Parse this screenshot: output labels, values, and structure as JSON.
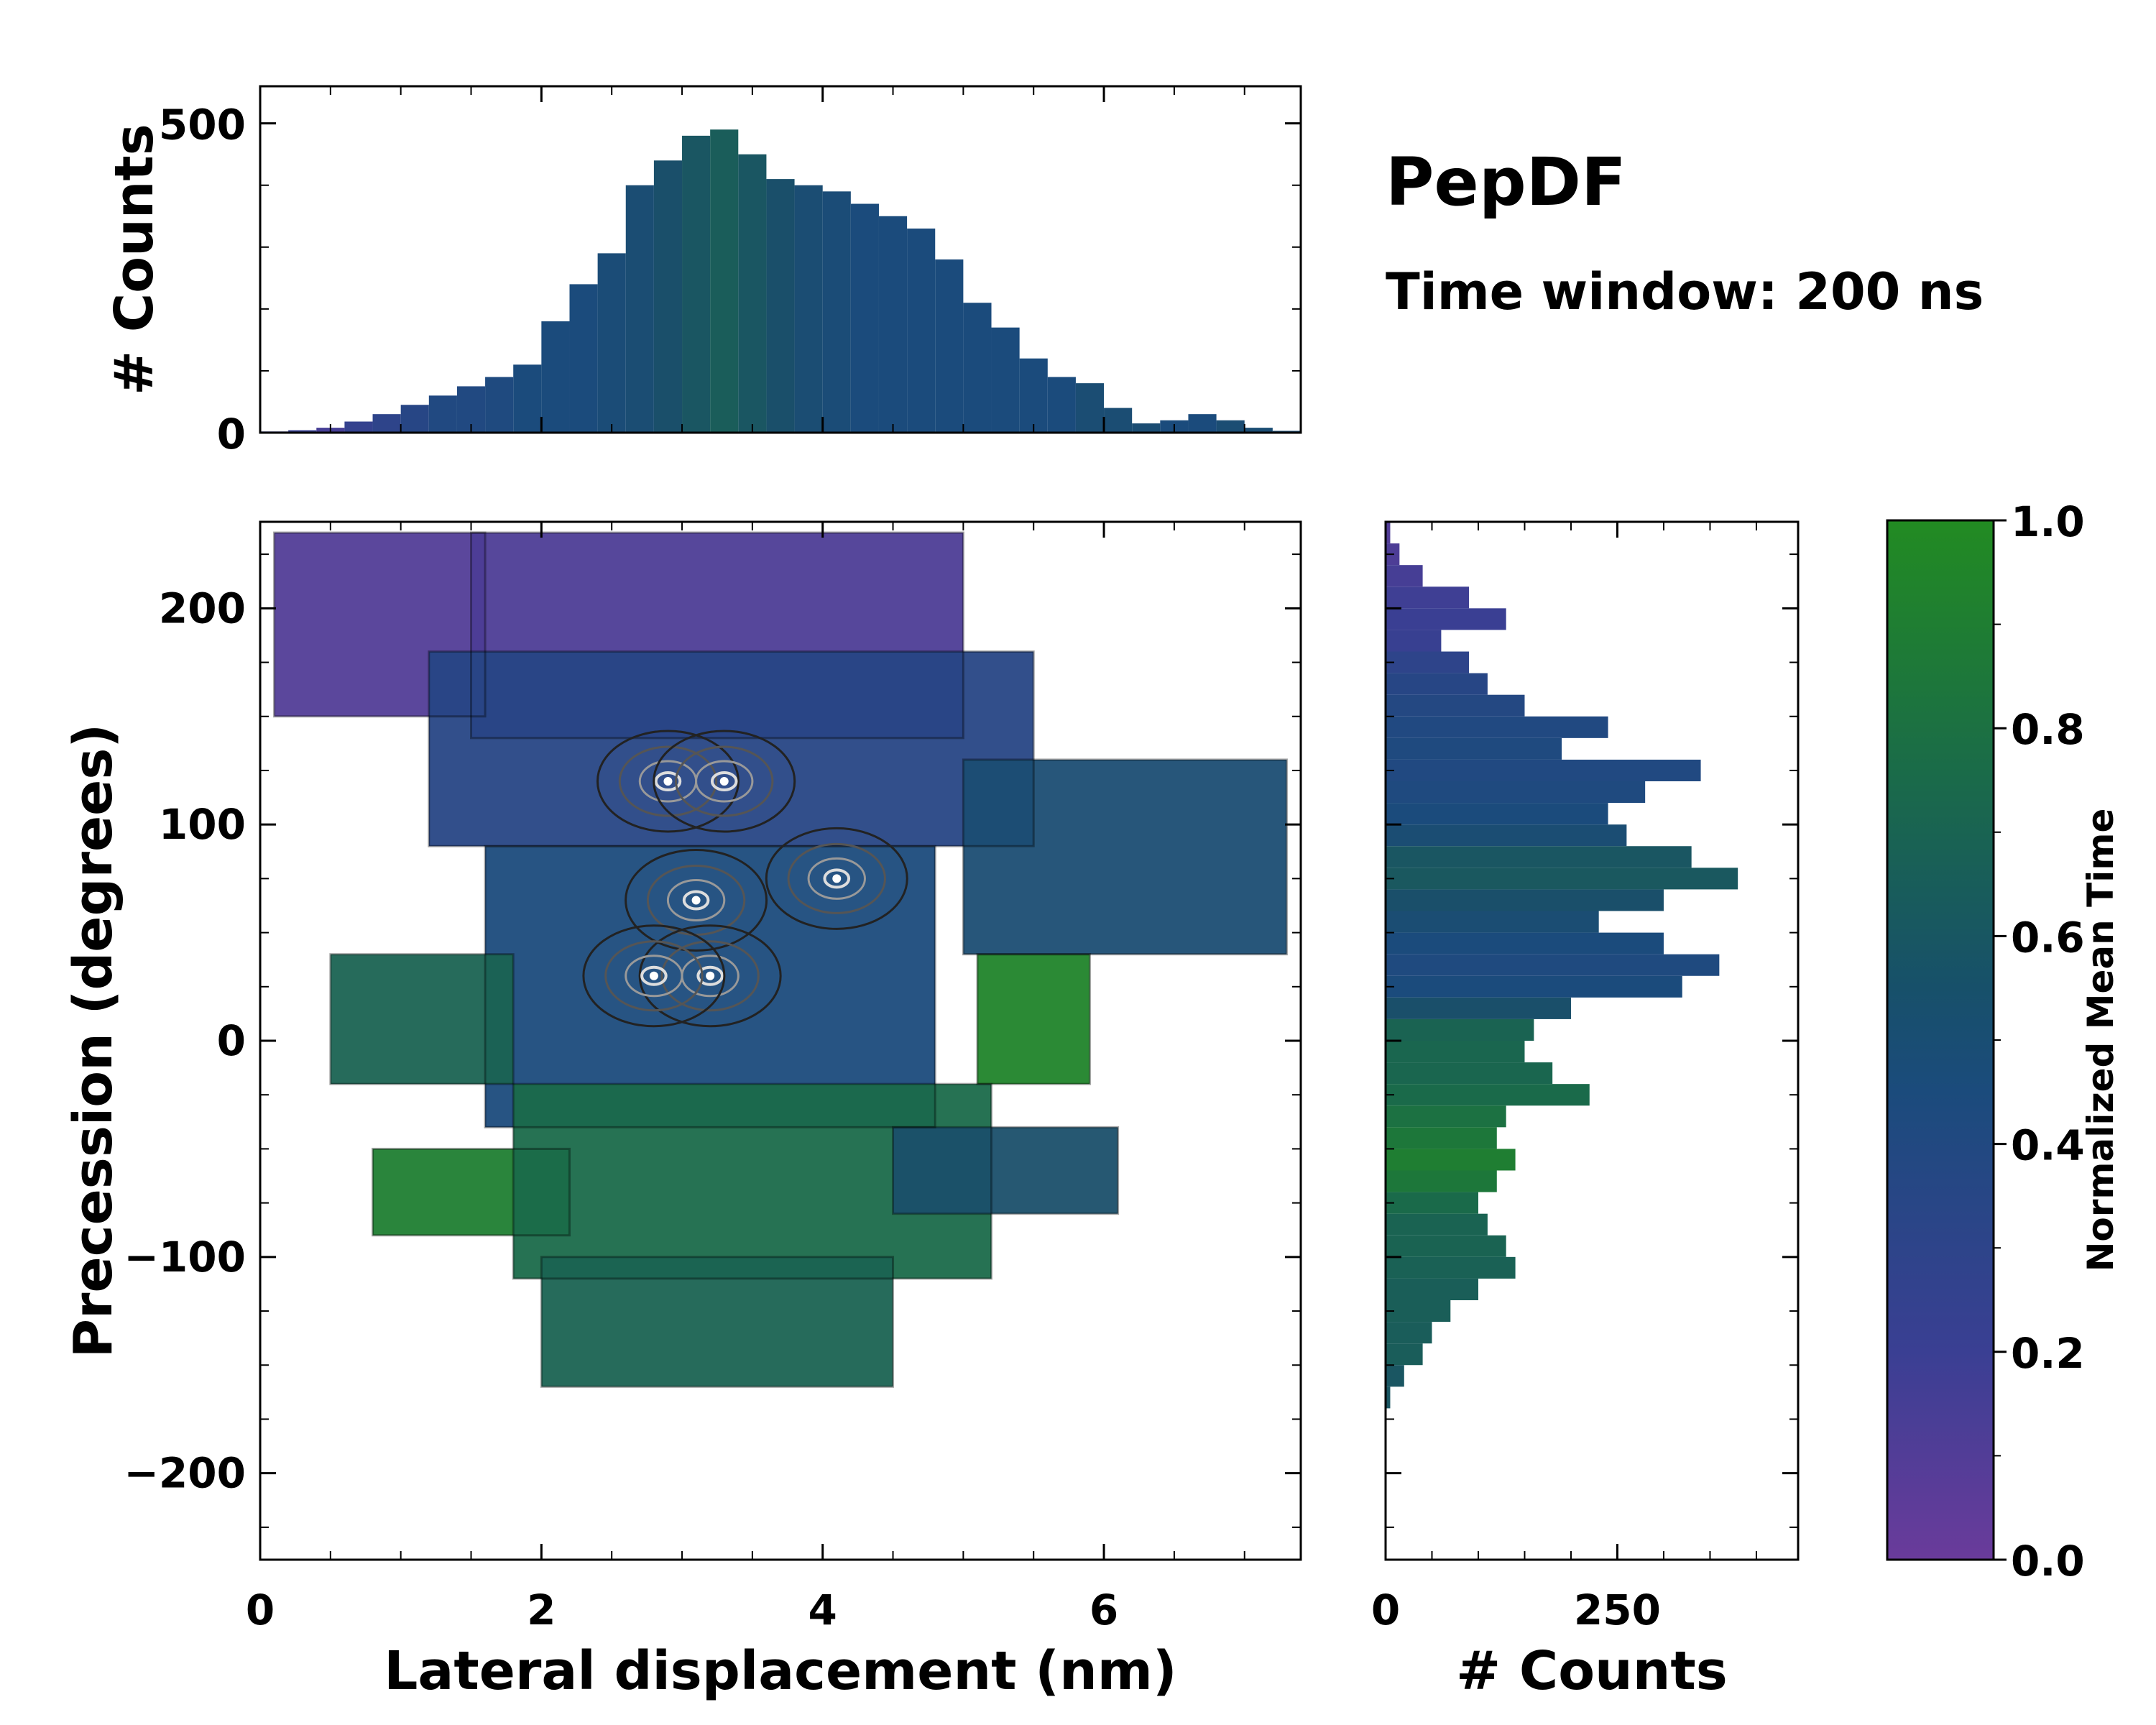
{
  "chart_data": [
    {
      "type": "heatmap",
      "name": "main",
      "xlabel": "Lateral displacement (nm)",
      "ylabel": "Precession (degrees)",
      "xlim": [
        0,
        7.4
      ],
      "ylim": [
        -240,
        240
      ],
      "xticks": [
        0,
        2,
        4,
        6
      ],
      "xtick_labels": [
        "0",
        "2",
        "4",
        "6"
      ],
      "yticks": [
        -200,
        -100,
        0,
        100,
        200
      ],
      "ytick_labels": [
        "−200",
        "−100",
        "0",
        "100",
        "200"
      ],
      "color_meaning": "Normalized Mean Time",
      "regions": [
        {
          "name": "upper-left tail",
          "x_range": [
            0.1,
            1.6
          ],
          "y_range": [
            150,
            235
          ],
          "mean_time": 0.1
        },
        {
          "name": "top band",
          "x_range": [
            1.5,
            5.0
          ],
          "y_range": [
            140,
            235
          ],
          "mean_time": 0.12
        },
        {
          "name": "upper core",
          "x_range": [
            1.2,
            5.5
          ],
          "y_range": [
            90,
            180
          ],
          "mean_time": 0.35
        },
        {
          "name": "right arm",
          "x_range": [
            5.0,
            7.3
          ],
          "y_range": [
            40,
            130
          ],
          "mean_time": 0.5
        },
        {
          "name": "center core",
          "x_range": [
            1.6,
            4.8
          ],
          "y_range": [
            -40,
            90
          ],
          "mean_time": 0.45
        },
        {
          "name": "left lobe",
          "x_range": [
            0.5,
            1.8
          ],
          "y_range": [
            -20,
            40
          ],
          "mean_time": 0.7
        },
        {
          "name": "green patch right",
          "x_range": [
            5.1,
            5.9
          ],
          "y_range": [
            -20,
            40
          ],
          "mean_time": 0.95
        },
        {
          "name": "lower-left lobe",
          "x_range": [
            0.8,
            2.2
          ],
          "y_range": [
            -90,
            -50
          ],
          "mean_time": 0.9
        },
        {
          "name": "lower core",
          "x_range": [
            1.8,
            5.2
          ],
          "y_range": [
            -110,
            -20
          ],
          "mean_time": 0.75
        },
        {
          "name": "bottom tail",
          "x_range": [
            2.0,
            4.5
          ],
          "y_range": [
            -160,
            -100
          ],
          "mean_time": 0.7
        },
        {
          "name": "lower-right arm",
          "x_range": [
            4.5,
            6.1
          ],
          "y_range": [
            -80,
            -40
          ],
          "mean_time": 0.55
        }
      ],
      "density_peaks": [
        {
          "x": 2.9,
          "y": 120
        },
        {
          "x": 3.3,
          "y": 120
        },
        {
          "x": 3.1,
          "y": 65
        },
        {
          "x": 4.1,
          "y": 75
        },
        {
          "x": 3.2,
          "y": 30
        },
        {
          "x": 2.8,
          "y": 30
        }
      ]
    },
    {
      "type": "bar",
      "name": "top-histogram",
      "ylabel": "# Counts",
      "xlim": [
        0,
        7.4
      ],
      "ylim": [
        0,
        560
      ],
      "yticks": [
        0,
        500
      ],
      "ytick_labels": [
        "0",
        "500"
      ],
      "x": [
        0.0,
        0.2,
        0.4,
        0.6,
        0.8,
        1.0,
        1.2,
        1.4,
        1.6,
        1.8,
        2.0,
        2.2,
        2.4,
        2.6,
        2.8,
        3.0,
        3.2,
        3.4,
        3.6,
        3.8,
        4.0,
        4.2,
        4.4,
        4.6,
        4.8,
        5.0,
        5.2,
        5.4,
        5.6,
        5.8,
        6.0,
        6.2,
        6.4,
        6.6,
        6.8,
        7.0,
        7.2,
        7.4
      ],
      "values": [
        2,
        4,
        8,
        18,
        30,
        45,
        60,
        75,
        90,
        110,
        180,
        240,
        290,
        400,
        440,
        480,
        490,
        450,
        410,
        400,
        390,
        370,
        350,
        330,
        280,
        210,
        170,
        120,
        90,
        80,
        40,
        15,
        20,
        30,
        20,
        8,
        3,
        0
      ],
      "mean_time": [
        0.2,
        0.22,
        0.15,
        0.25,
        0.3,
        0.35,
        0.4,
        0.4,
        0.42,
        0.45,
        0.45,
        0.45,
        0.48,
        0.5,
        0.55,
        0.6,
        0.65,
        0.6,
        0.55,
        0.5,
        0.48,
        0.45,
        0.45,
        0.45,
        0.45,
        0.45,
        0.45,
        0.45,
        0.45,
        0.5,
        0.5,
        0.5,
        0.45,
        0.45,
        0.5,
        0.5,
        0.5,
        0.5
      ]
    },
    {
      "type": "bar",
      "name": "right-histogram",
      "orientation": "horizontal",
      "xlabel": "# Counts",
      "xlim": [
        0,
        445
      ],
      "ylim": [
        -240,
        240
      ],
      "xticks": [
        0,
        250
      ],
      "xtick_labels": [
        "0",
        "250"
      ],
      "y": [
        235,
        225,
        215,
        205,
        195,
        185,
        175,
        165,
        155,
        145,
        135,
        125,
        115,
        105,
        95,
        85,
        75,
        65,
        55,
        45,
        35,
        25,
        15,
        5,
        -5,
        -15,
        -25,
        -35,
        -45,
        -55,
        -65,
        -75,
        -85,
        -95,
        -105,
        -115,
        -125,
        -135,
        -145,
        -155,
        -165
      ],
      "values": [
        5,
        15,
        40,
        90,
        130,
        60,
        90,
        110,
        150,
        240,
        190,
        340,
        280,
        240,
        260,
        330,
        380,
        300,
        230,
        300,
        360,
        320,
        200,
        160,
        150,
        180,
        220,
        130,
        120,
        140,
        120,
        100,
        110,
        130,
        140,
        100,
        70,
        50,
        40,
        20,
        5
      ],
      "mean_time": [
        0.1,
        0.12,
        0.15,
        0.18,
        0.2,
        0.22,
        0.3,
        0.35,
        0.38,
        0.4,
        0.42,
        0.4,
        0.42,
        0.45,
        0.5,
        0.6,
        0.62,
        0.55,
        0.5,
        0.45,
        0.42,
        0.45,
        0.55,
        0.7,
        0.72,
        0.72,
        0.75,
        0.8,
        0.85,
        0.9,
        0.85,
        0.75,
        0.7,
        0.7,
        0.68,
        0.66,
        0.66,
        0.65,
        0.65,
        0.6,
        0.6
      ]
    }
  ],
  "colorbar": {
    "label": "Normalized Mean Time",
    "ticks": [
      0.0,
      0.2,
      0.4,
      0.6,
      0.8,
      1.0
    ],
    "tick_labels": [
      "0.0",
      "0.2",
      "0.4",
      "0.6",
      "0.8",
      "1.0"
    ],
    "colors": [
      "#6a3b9b",
      "#3a3f93",
      "#1b4b7c",
      "#1a4f6a",
      "#1a6a4a",
      "#228b22"
    ]
  },
  "annotations": {
    "title": "PepDF",
    "subtitle": "Time window: 200 ns"
  }
}
